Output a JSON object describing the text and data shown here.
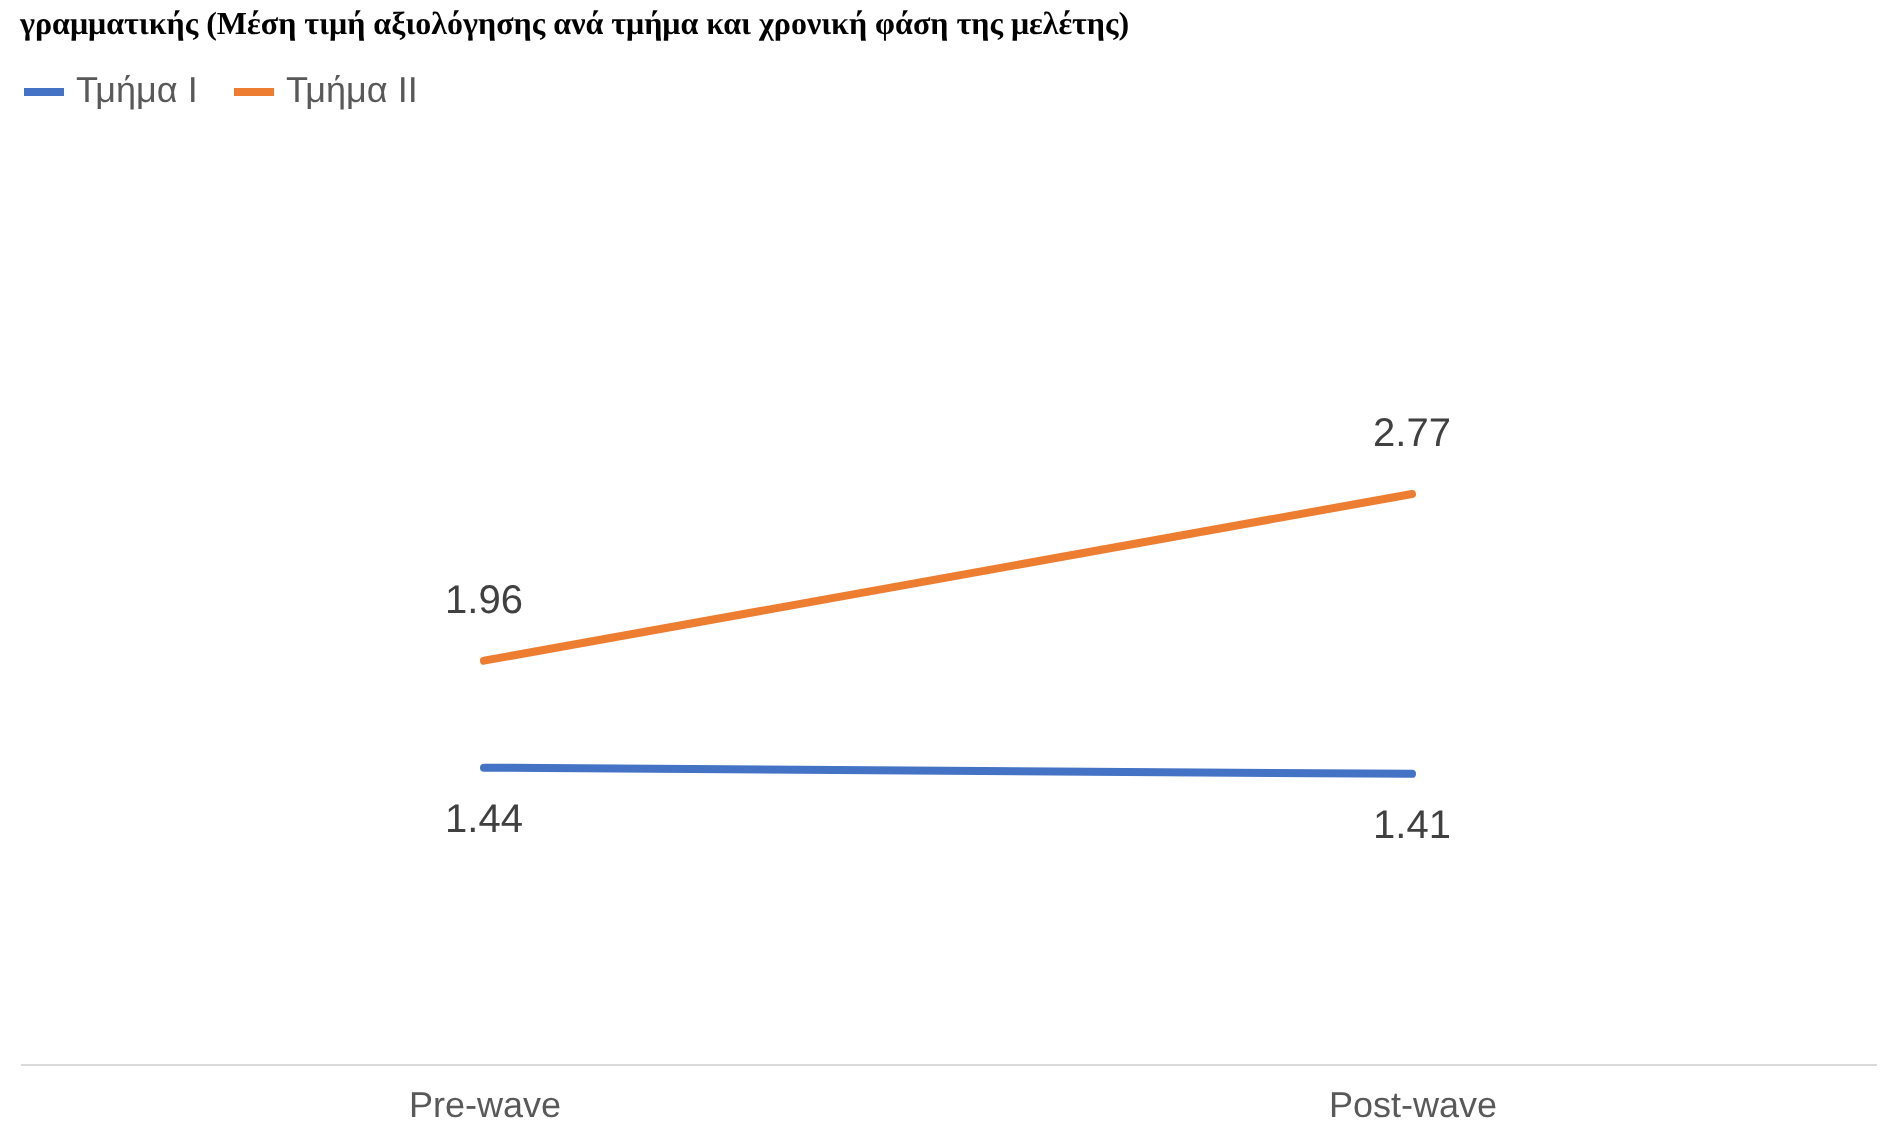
{
  "chart_data": {
    "type": "line",
    "title": "γραμματικής (Μέση τιμή αξιολόγησης ανά τμήμα και χρονική φάση της μελέτης)",
    "categories": [
      "Pre-wave",
      "Post-wave"
    ],
    "series": [
      {
        "name": "Τμήμα I",
        "color": "#4472c4",
        "values": [
          1.44,
          1.41
        ]
      },
      {
        "name": "Τμήμα II",
        "color": "#ed7d31",
        "values": [
          1.96,
          2.77
        ]
      }
    ],
    "tick_labels": "x",
    "data_labels": true,
    "legend": "top",
    "grid": false,
    "marker": "none"
  }
}
